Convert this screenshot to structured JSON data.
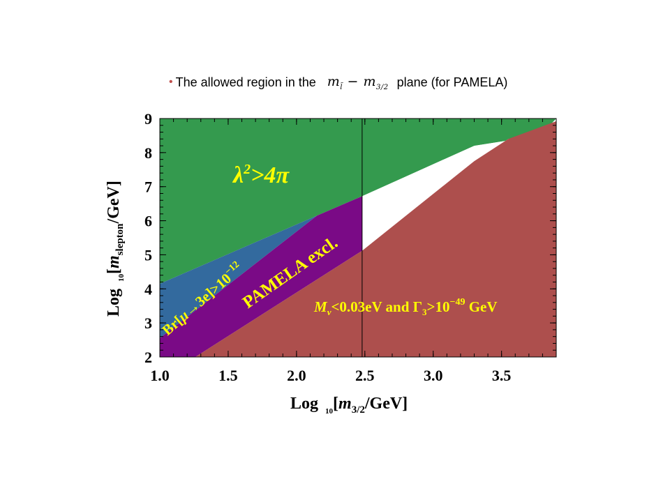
{
  "slide": {
    "bullet": "•",
    "text_before": "The allowed region in the",
    "formula": {
      "m1": "m",
      "sub1": "l̃",
      "minus": "−",
      "m2": "m",
      "sub2": "3/2"
    },
    "text_after": "plane (for PAMELA)"
  },
  "chart_data": {
    "type": "area",
    "xlim": [
      1.0,
      3.9
    ],
    "ylim": [
      2,
      9
    ],
    "xlabel": {
      "prefix": "Log",
      "sub": "10",
      "bracket_open": "[",
      "var": "m",
      "var_sub": "3/2",
      "rest": "/GeV]"
    },
    "ylabel": {
      "prefix": "Log",
      "sub": "10",
      "bracket_open": "[",
      "var": "m",
      "var_sub": "slepton",
      "rest": "/GeV]"
    },
    "xticks": [
      1.0,
      1.5,
      2.0,
      2.5,
      3.0,
      3.5
    ],
    "xtick_labels": [
      "1.0",
      "1.5",
      "2.0",
      "2.5",
      "3.0",
      "3.5"
    ],
    "yticks": [
      2,
      3,
      4,
      5,
      6,
      7,
      8,
      9
    ],
    "ytick_labels": [
      "2",
      "3",
      "4",
      "5",
      "6",
      "7",
      "8",
      "9"
    ],
    "vertical_line_x": 2.48,
    "regions": [
      {
        "id": "green",
        "color": "#349a4e",
        "points": [
          [
            1.0,
            9.0
          ],
          [
            3.9,
            9.0
          ],
          [
            3.78,
            8.5
          ],
          [
            3.3,
            8.2
          ],
          [
            2.48,
            6.72
          ],
          [
            2.15,
            6.15
          ],
          [
            1.0,
            4.15
          ]
        ]
      },
      {
        "id": "white",
        "color": "#ffffff",
        "points": [
          [
            2.48,
            6.72
          ],
          [
            3.3,
            8.2
          ],
          [
            3.78,
            8.5
          ],
          [
            3.55,
            8.4
          ],
          [
            3.3,
            7.75
          ],
          [
            2.48,
            5.12
          ]
        ]
      },
      {
        "id": "blue",
        "color": "#336a9e",
        "points": [
          [
            1.0,
            4.15
          ],
          [
            2.15,
            6.15
          ],
          [
            1.0,
            2.55
          ]
        ]
      },
      {
        "id": "purple",
        "color": "#7a0a86",
        "points": [
          [
            1.0,
            2.55
          ],
          [
            2.15,
            6.15
          ],
          [
            2.48,
            6.72
          ],
          [
            2.48,
            5.12
          ],
          [
            1.26,
            2.0
          ],
          [
            1.0,
            2.0
          ]
        ]
      },
      {
        "id": "red",
        "color": "#ad4f4d",
        "points": [
          [
            1.26,
            2.0
          ],
          [
            2.48,
            5.12
          ],
          [
            3.3,
            7.75
          ],
          [
            3.55,
            8.4
          ],
          [
            3.9,
            8.92
          ],
          [
            3.9,
            2.0
          ]
        ]
      }
    ],
    "annotations": {
      "lambda": {
        "main": "λ",
        "sup": "2",
        "rest": ">4π",
        "color": "#ffff00"
      },
      "br": {
        "prefix": "Br[",
        "mu": "μ",
        "arrow": "→",
        "rest": "3e]>10",
        "sup": "−12",
        "color": "#ffff00"
      },
      "pamela": {
        "text": "PAMELA excl.",
        "color": "#ffff00"
      },
      "mnu": {
        "m": "M",
        "sub": "ν",
        "mid": "<0.03eV and Γ",
        "sub2": "3",
        "gt": ">10",
        "sup": "−49",
        "end": " GeV",
        "color": "#ffff00"
      }
    }
  }
}
